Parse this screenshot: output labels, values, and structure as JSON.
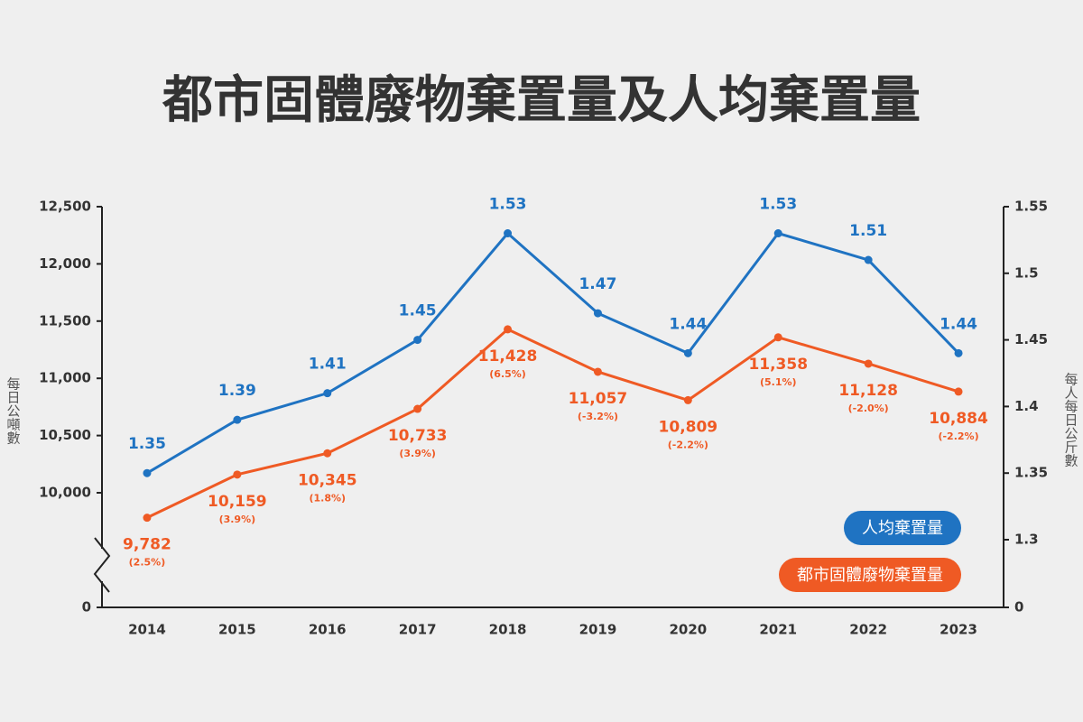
{
  "chart_data": {
    "type": "line",
    "title": "都市固體廢物棄置量及人均棄置量",
    "y_label": "每日公噸數",
    "y2_label": "每人每日公斤數",
    "categories": [
      "2014",
      "2015",
      "2016",
      "2017",
      "2018",
      "2019",
      "2020",
      "2021",
      "2022",
      "2023"
    ],
    "series": [
      {
        "name": "人均棄置量",
        "color": "#1f73c2",
        "axis": "y2",
        "values": [
          1.35,
          1.39,
          1.41,
          1.45,
          1.53,
          1.47,
          1.44,
          1.53,
          1.51,
          1.44
        ]
      },
      {
        "name": "都市固體廢物棄置量",
        "color": "#ef5a24",
        "values": [
          9782,
          10159,
          10345,
          10733,
          11428,
          11057,
          10809,
          11358,
          11128,
          10884
        ],
        "value_labels": [
          "9,782",
          "10,159",
          "10,345",
          "10,733",
          "11,428",
          "11,057",
          "10,809",
          "11,358",
          "11,128",
          "10,884"
        ],
        "change_labels": [
          "(2.5%)",
          "(3.9%)",
          "(1.8%)",
          "(3.9%)",
          "(6.5%)",
          "(-3.2%)",
          "(-2.2%)",
          "(5.1%)",
          "(-2.0%)",
          "(-2.2%)"
        ]
      }
    ],
    "ylim": [
      0,
      12500
    ],
    "yticks": [
      0,
      {
        "value": 10000,
        "label": "10,000"
      },
      {
        "value": 10500,
        "label": "10,500"
      },
      {
        "value": 11000,
        "label": "11,000"
      },
      {
        "value": 11500,
        "label": "11,500"
      },
      {
        "value": 12000,
        "label": "12,000"
      },
      {
        "value": 12500,
        "label": "12,500"
      }
    ],
    "y2lim": [
      0,
      1.55
    ],
    "y2ticks": [
      0,
      1.3,
      1.35,
      1.4,
      1.45,
      1.5,
      1.55
    ],
    "axis_break": true,
    "legend": "lower right"
  }
}
